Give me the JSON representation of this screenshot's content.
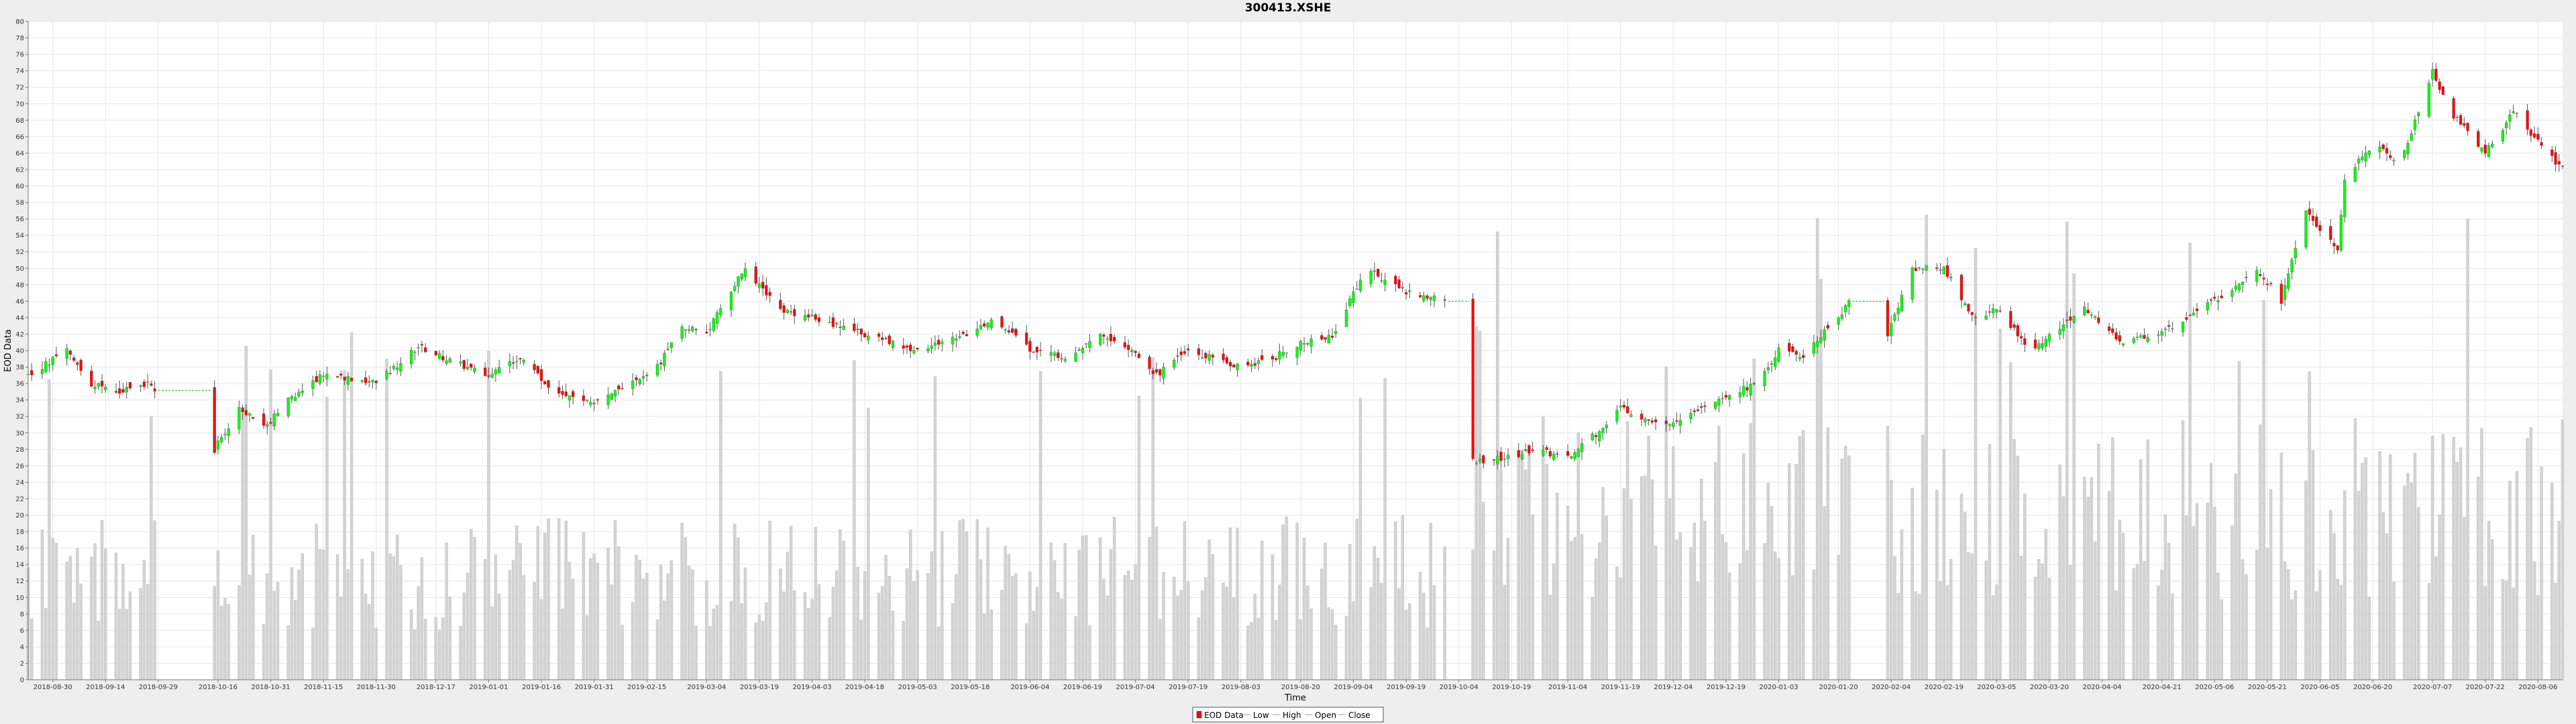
{
  "chart_data": {
    "type": "candlestick",
    "title": "300413.XSHE",
    "xlabel": "Time",
    "ylabel": "EOD Data",
    "ylim": [
      0,
      80
    ],
    "y_ticks": [
      0,
      2,
      4,
      6,
      8,
      10,
      12,
      14,
      16,
      18,
      20,
      22,
      24,
      26,
      28,
      30,
      32,
      34,
      36,
      38,
      40,
      42,
      44,
      46,
      48,
      50,
      52,
      54,
      56,
      58,
      60,
      62,
      64,
      66,
      68,
      70,
      72,
      74,
      76,
      78,
      80
    ],
    "x_range": [
      "2018-08-23",
      "2020-08-13"
    ],
    "x_ticks": [
      "2018-08-30",
      "2018-09-14",
      "2018-09-29",
      "2018-10-16",
      "2018-10-31",
      "2018-11-15",
      "2018-11-30",
      "2018-12-17",
      "2019-01-01",
      "2019-01-16",
      "2019-01-31",
      "2019-02-15",
      "2019-03-04",
      "2019-03-19",
      "2019-04-03",
      "2019-04-18",
      "2019-05-03",
      "2019-05-18",
      "2019-06-04",
      "2019-06-19",
      "2019-07-04",
      "2019-07-19",
      "2019-08-03",
      "2019-08-20",
      "2019-09-04",
      "2019-09-19",
      "2019-10-04",
      "2019-10-19",
      "2019-11-04",
      "2019-11-19",
      "2019-12-04",
      "2019-12-19",
      "2020-01-03",
      "2020-01-20",
      "2020-02-04",
      "2020-02-19",
      "2020-03-05",
      "2020-03-20",
      "2020-04-04",
      "2020-04-21",
      "2020-05-06",
      "2020-05-21",
      "2020-06-05",
      "2020-06-20",
      "2020-07-07",
      "2020-07-22",
      "2020-08-06"
    ],
    "close_price_anchors": [
      [
        "2018-08-23",
        37
      ],
      [
        "2018-09-03",
        40
      ],
      [
        "2018-09-10",
        36
      ],
      [
        "2018-09-17",
        35
      ],
      [
        "2018-09-26",
        36
      ],
      [
        "2018-10-15",
        28
      ],
      [
        "2018-10-22",
        33
      ],
      [
        "2018-10-30",
        31
      ],
      [
        "2018-11-05",
        34
      ],
      [
        "2018-11-15",
        37
      ],
      [
        "2018-11-30",
        36
      ],
      [
        "2018-12-12",
        40.5
      ],
      [
        "2018-12-20",
        39
      ],
      [
        "2019-01-01",
        37
      ],
      [
        "2019-01-10",
        39
      ],
      [
        "2019-01-20",
        35
      ],
      [
        "2019-01-31",
        33.5
      ],
      [
        "2019-02-18",
        38
      ],
      [
        "2019-02-25",
        43
      ],
      [
        "2019-03-04",
        42
      ],
      [
        "2019-03-12",
        48
      ],
      [
        "2019-03-15",
        50
      ],
      [
        "2019-03-25",
        45
      ],
      [
        "2019-04-03",
        44
      ],
      [
        "2019-04-18",
        42
      ],
      [
        "2019-05-03",
        40
      ],
      [
        "2019-05-18",
        42
      ],
      [
        "2019-05-25",
        44
      ],
      [
        "2019-06-04",
        40
      ],
      [
        "2019-06-15",
        39
      ],
      [
        "2019-06-25",
        42
      ],
      [
        "2019-07-04",
        40
      ],
      [
        "2019-07-10",
        37
      ],
      [
        "2019-07-19",
        40
      ],
      [
        "2019-08-03",
        38
      ],
      [
        "2019-08-12",
        39
      ],
      [
        "2019-08-20",
        41
      ],
      [
        "2019-08-30",
        42
      ],
      [
        "2019-09-04",
        47
      ],
      [
        "2019-09-08",
        50
      ],
      [
        "2019-09-19",
        47
      ],
      [
        "2019-09-30",
        46
      ],
      [
        "2019-10-08",
        26.5
      ],
      [
        "2019-10-19",
        27
      ],
      [
        "2019-10-25",
        28
      ],
      [
        "2019-11-04",
        27
      ],
      [
        "2019-11-15",
        31
      ],
      [
        "2019-11-19",
        33
      ],
      [
        "2019-11-30",
        31
      ],
      [
        "2019-12-04",
        31
      ],
      [
        "2019-12-19",
        34.5
      ],
      [
        "2019-12-28",
        36
      ],
      [
        "2020-01-03",
        40
      ],
      [
        "2020-01-10",
        39.5
      ],
      [
        "2020-01-20",
        44
      ],
      [
        "2020-01-23",
        46
      ],
      [
        "2020-02-03",
        42
      ],
      [
        "2020-02-10",
        50
      ],
      [
        "2020-02-19",
        50
      ],
      [
        "2020-02-27",
        44
      ],
      [
        "2020-03-05",
        45
      ],
      [
        "2020-03-15",
        40
      ],
      [
        "2020-03-30",
        45
      ],
      [
        "2020-04-10",
        41
      ],
      [
        "2020-04-21",
        42
      ],
      [
        "2020-05-06",
        46
      ],
      [
        "2020-05-18",
        50
      ],
      [
        "2020-05-25",
        46
      ],
      [
        "2020-06-01",
        57
      ],
      [
        "2020-06-10",
        52
      ],
      [
        "2020-06-12",
        61
      ],
      [
        "2020-06-20",
        65
      ],
      [
        "2020-06-28",
        63
      ],
      [
        "2020-07-07",
        74
      ],
      [
        "2020-07-12",
        69
      ],
      [
        "2020-07-22",
        64
      ],
      [
        "2020-07-30",
        69
      ],
      [
        "2020-08-05",
        66
      ],
      [
        "2020-08-13",
        62
      ]
    ],
    "legend_position": "bottom-center",
    "colors": {
      "up": "#00ff00",
      "down": "#ff0000",
      "wick": "#555555",
      "volume": "#d3d3d3",
      "grid": "#e6e6e6",
      "gap_line": "#33cc33",
      "plot_bg": "#ffffff",
      "page_bg": "#eeeeee"
    },
    "grid": true
  },
  "legend": {
    "items": [
      {
        "label": "EOD Data",
        "swatch": "candle"
      },
      {
        "label": "Low",
        "swatch": "line"
      },
      {
        "label": "High",
        "swatch": "line"
      },
      {
        "label": "Open",
        "swatch": "line"
      },
      {
        "label": "Close",
        "swatch": "line"
      }
    ]
  }
}
